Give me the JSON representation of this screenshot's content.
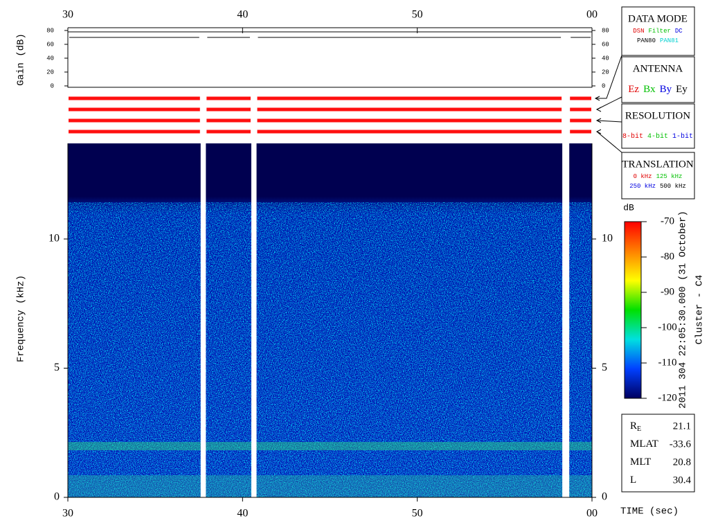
{
  "chart_data": {
    "type": "spectrogram",
    "xlabel": "TIME (sec)",
    "ylabel": "Frequency (kHz)",
    "xlim": [
      30,
      60
    ],
    "xticks": [
      30,
      40,
      50,
      {
        "value": 60,
        "label": "00"
      }
    ],
    "ylim": [
      0,
      13.7
    ],
    "yticks": [
      0,
      5,
      10
    ],
    "data_gaps": [
      [
        37.6,
        37.9
      ],
      [
        40.5,
        40.8
      ],
      [
        58.3,
        58.7
      ]
    ],
    "gain": {
      "ylabel": "Gain (dB)",
      "ylim": [
        0,
        80
      ],
      "yticks": [
        0,
        20,
        40,
        60,
        80
      ],
      "level": 70
    },
    "colorbar": {
      "label": "dB",
      "lim": [
        -120,
        -70
      ],
      "ticks": [
        -70,
        -80,
        -90,
        -100,
        -110,
        -120
      ],
      "colors": [
        "#ff0000",
        "#ff8000",
        "#ffff00",
        "#00e000",
        "#00e0e0",
        "#0040ff",
        "#000060"
      ]
    },
    "timestamp": "2011 304 22:05:30.000 (31 October)",
    "spacecraft": "Cluster - C4"
  },
  "panels": [
    {
      "title": "DATA MODE",
      "rows": [
        [
          {
            "text": "DSN",
            "color": "#e00000"
          },
          {
            "text": "Filter",
            "color": "#00c000"
          },
          {
            "text": "DC",
            "color": "#0000e0"
          }
        ],
        [
          {
            "text": "PAN80",
            "color": "#000000"
          },
          {
            "text": "PAN81",
            "color": "#00d0d0"
          }
        ]
      ]
    },
    {
      "title": "ANTENNA",
      "rows": [
        [
          {
            "text": "Ez",
            "color": "#e00000"
          },
          {
            "text": "Bx",
            "color": "#00c000"
          },
          {
            "text": "By",
            "color": "#0000e0"
          },
          {
            "text": "Ey",
            "color": "#000000"
          }
        ]
      ]
    },
    {
      "title": "RESOLUTION",
      "rows": [
        [
          {
            "text": "8-bit",
            "color": "#e00000"
          },
          {
            "text": "4-bit",
            "color": "#00c000"
          },
          {
            "text": "1-bit",
            "color": "#0000e0"
          }
        ]
      ]
    },
    {
      "title": "TRANSLATION",
      "rows": [
        [
          {
            "text": "0 kHz",
            "color": "#e00000"
          },
          {
            "text": "125 kHz",
            "color": "#00c000"
          }
        ],
        [
          {
            "text": "250 kHz",
            "color": "#0000e0"
          },
          {
            "text": "500 kHz",
            "color": "#000000"
          }
        ]
      ]
    }
  ],
  "position": [
    {
      "label": "R",
      "subscript": "E",
      "value": 21.1
    },
    {
      "label": "MLAT",
      "value": -33.6
    },
    {
      "label": "MLT",
      "value": 20.8
    },
    {
      "label": "L",
      "value": 30.4
    }
  ]
}
